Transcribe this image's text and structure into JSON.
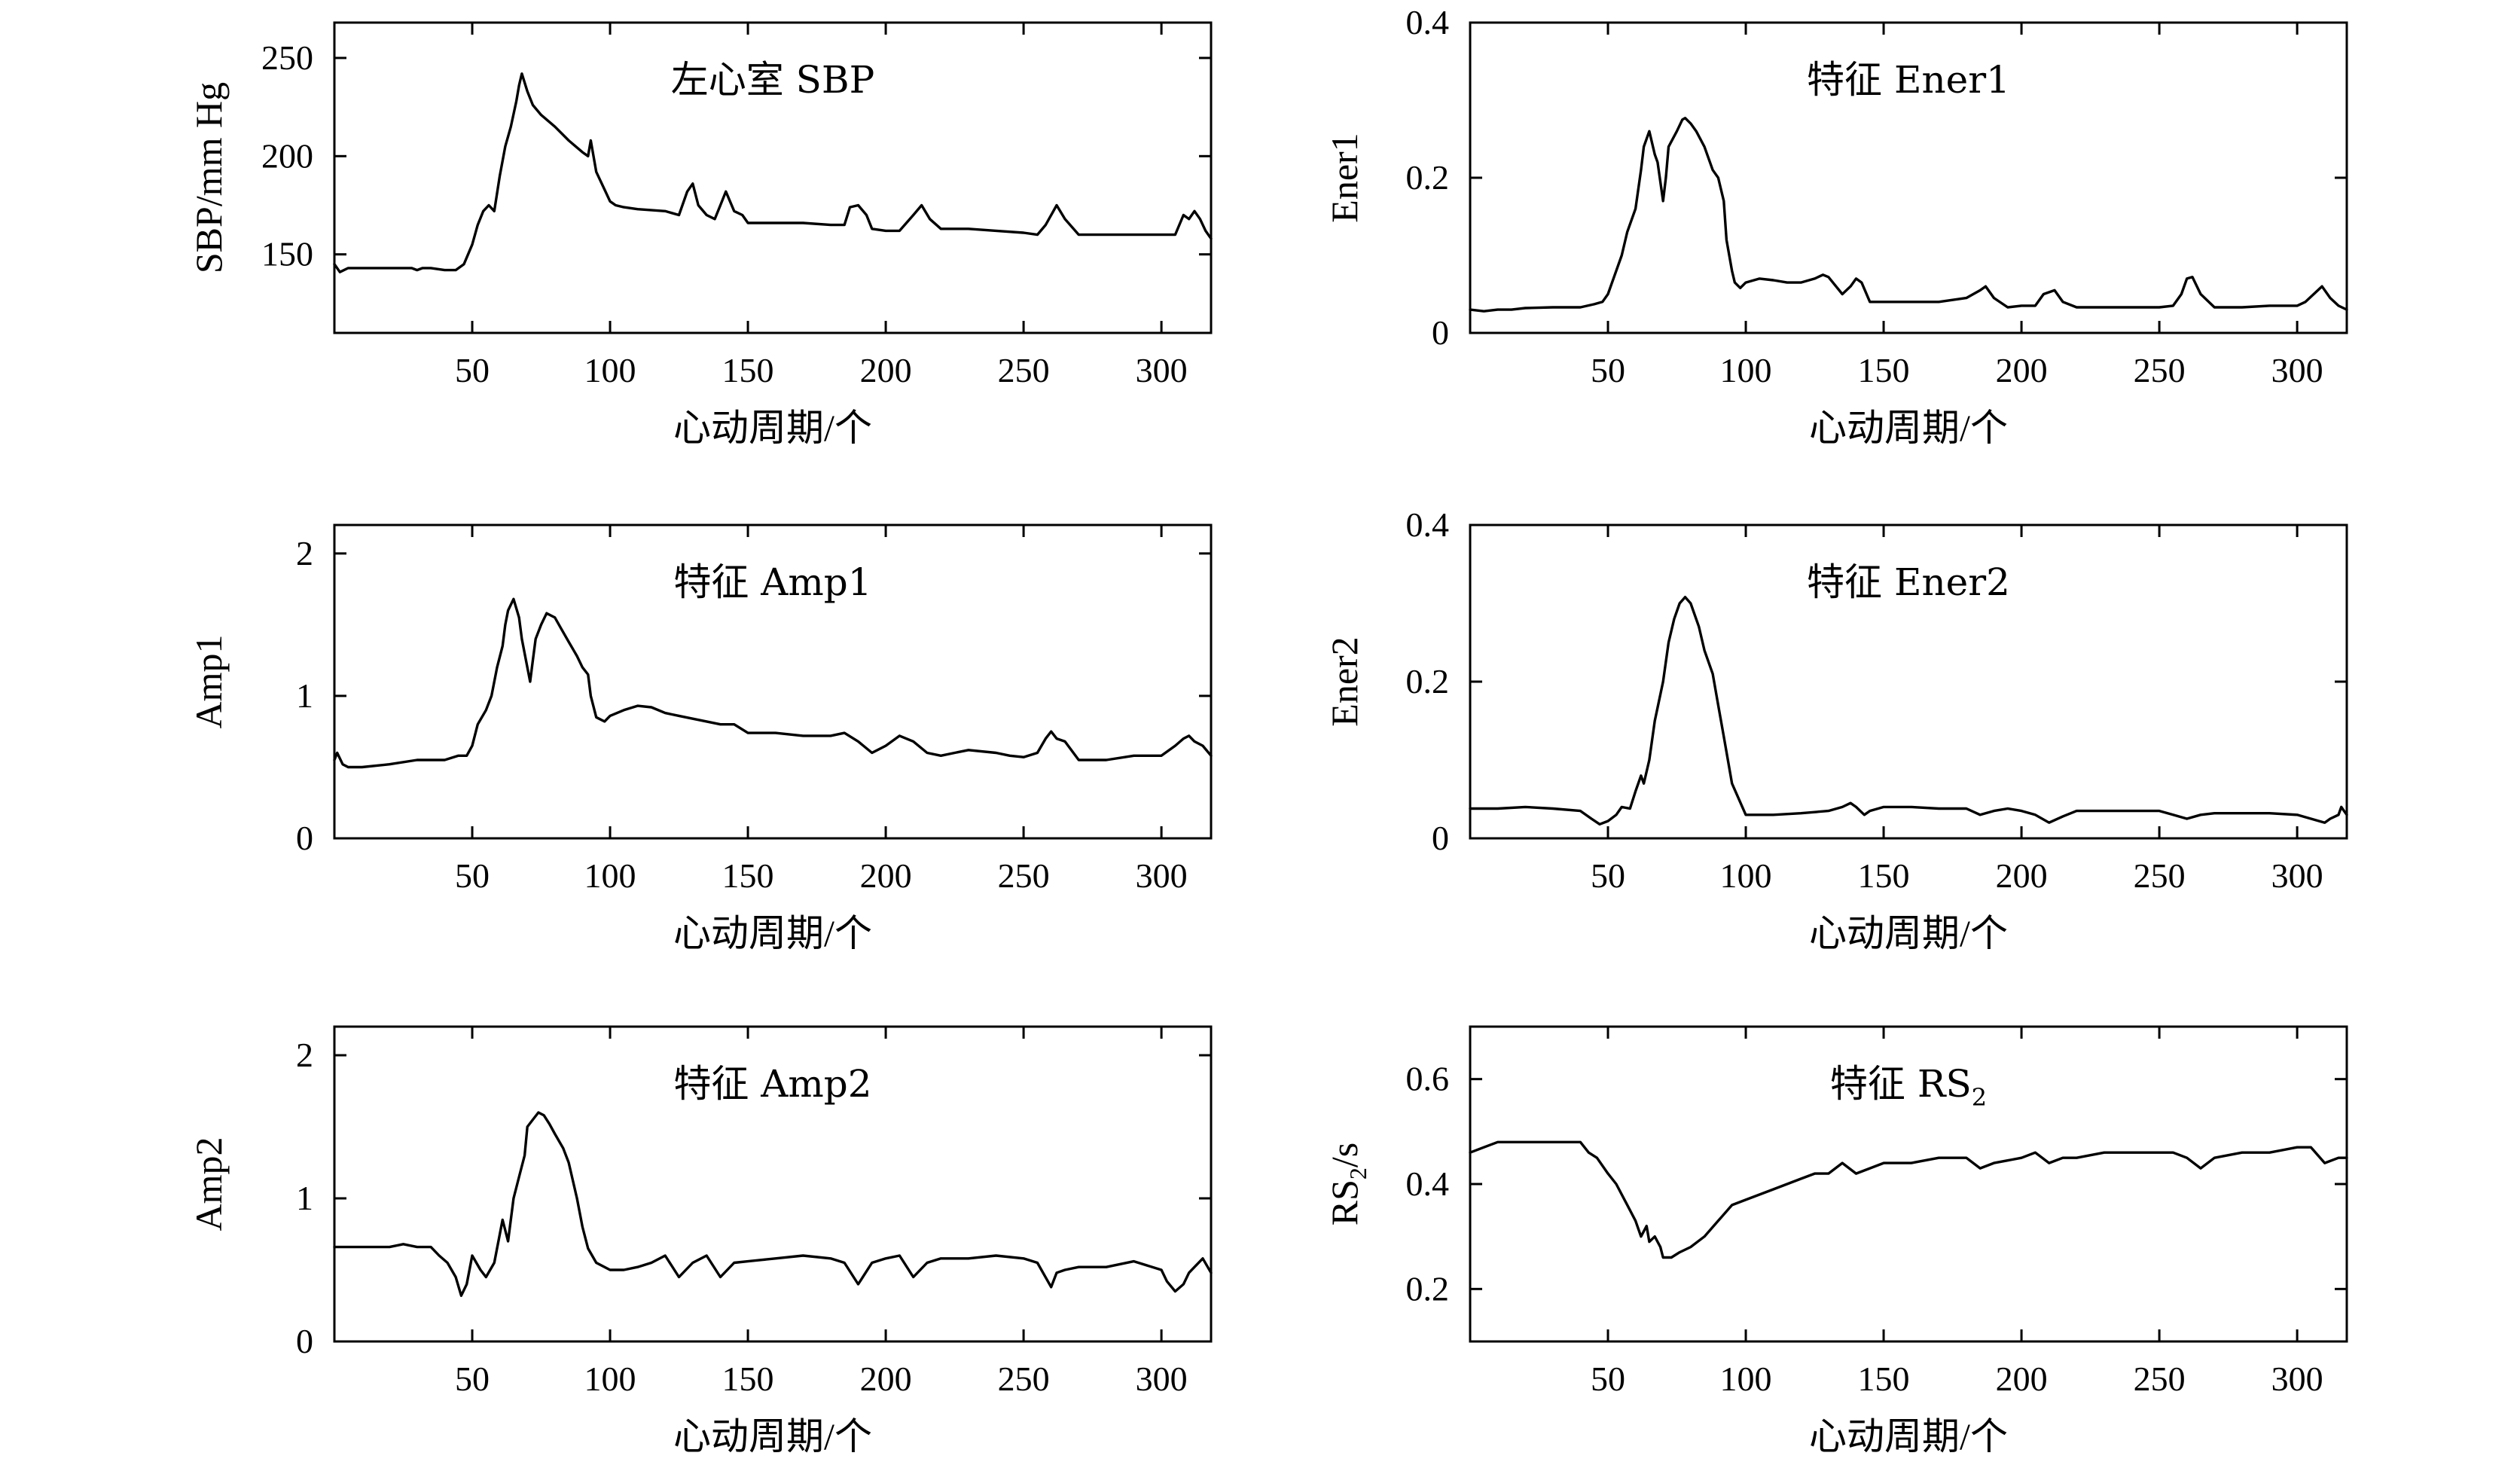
{
  "chart_data": [
    {
      "type": "line",
      "title": "左心室 SBP",
      "xlabel": "心动周期/个",
      "ylabel": "SBP/mm Hg",
      "xlim": [
        0,
        318
      ],
      "ylim": [
        110,
        268
      ],
      "xticks": [
        50,
        100,
        150,
        200,
        250,
        300
      ],
      "yticks": [
        150,
        200,
        250
      ],
      "grid": false,
      "series": [
        {
          "x": [
            0,
            2,
            5,
            10,
            20,
            28,
            30,
            32,
            35,
            40,
            44,
            47,
            50,
            52,
            54,
            56,
            58,
            60,
            62,
            64,
            66,
            67,
            68,
            70,
            72,
            75,
            80,
            85,
            90,
            92,
            93,
            95,
            98,
            100,
            102,
            105,
            110,
            120,
            125,
            128,
            130,
            132,
            135,
            138,
            140,
            142,
            145,
            148,
            150,
            155,
            160,
            170,
            180,
            185,
            187,
            190,
            193,
            195,
            200,
            205,
            210,
            213,
            216,
            220,
            230,
            240,
            250,
            255,
            258,
            262,
            265,
            270,
            280,
            290,
            300,
            305,
            308,
            310,
            312,
            314,
            316,
            318
          ],
          "y": [
            145,
            141,
            143,
            143,
            143,
            143,
            142,
            143,
            143,
            142,
            142,
            145,
            155,
            165,
            172,
            175,
            172,
            190,
            205,
            215,
            228,
            236,
            242,
            233,
            226,
            221,
            215,
            208,
            202,
            200,
            208,
            192,
            183,
            177,
            175,
            174,
            173,
            172,
            170,
            182,
            186,
            175,
            170,
            168,
            175,
            182,
            172,
            170,
            166,
            166,
            166,
            166,
            165,
            165,
            174,
            175,
            170,
            163,
            162,
            162,
            170,
            175,
            168,
            163,
            163,
            162,
            161,
            160,
            165,
            175,
            168,
            160,
            160,
            160,
            160,
            160,
            170,
            168,
            172,
            168,
            162,
            158
          ]
        }
      ]
    },
    {
      "type": "line",
      "title": "特征 Ener1",
      "xlabel": "心动周期/个",
      "ylabel": "Ener1",
      "xlim": [
        0,
        318
      ],
      "ylim": [
        0,
        0.4
      ],
      "xticks": [
        50,
        100,
        150,
        200,
        250,
        300
      ],
      "yticks": [
        "0",
        "0.2",
        "0.4"
      ],
      "grid": false,
      "series": [
        {
          "x": [
            0,
            5,
            10,
            15,
            20,
            30,
            40,
            45,
            48,
            50,
            52,
            55,
            57,
            60,
            62,
            63,
            65,
            67,
            68,
            70,
            71,
            72,
            75,
            77,
            78,
            80,
            82,
            85,
            88,
            90,
            92,
            93,
            95,
            96,
            98,
            100,
            105,
            110,
            115,
            120,
            125,
            128,
            130,
            135,
            138,
            140,
            142,
            145,
            150,
            160,
            170,
            180,
            185,
            187,
            190,
            195,
            200,
            205,
            208,
            212,
            215,
            220,
            230,
            240,
            250,
            255,
            258,
            260,
            262,
            265,
            270,
            280,
            290,
            300,
            303,
            306,
            309,
            312,
            315,
            318
          ],
          "y": [
            0.03,
            0.028,
            0.03,
            0.03,
            0.032,
            0.033,
            0.033,
            0.037,
            0.04,
            0.05,
            0.07,
            0.1,
            0.13,
            0.16,
            0.21,
            0.24,
            0.26,
            0.23,
            0.22,
            0.17,
            0.2,
            0.24,
            0.26,
            0.275,
            0.277,
            0.27,
            0.26,
            0.24,
            0.21,
            0.2,
            0.17,
            0.12,
            0.08,
            0.065,
            0.058,
            0.065,
            0.07,
            0.068,
            0.065,
            0.065,
            0.07,
            0.075,
            0.072,
            0.05,
            0.06,
            0.07,
            0.065,
            0.04,
            0.04,
            0.04,
            0.04,
            0.045,
            0.055,
            0.06,
            0.045,
            0.033,
            0.035,
            0.035,
            0.05,
            0.055,
            0.04,
            0.033,
            0.033,
            0.033,
            0.033,
            0.035,
            0.05,
            0.07,
            0.072,
            0.05,
            0.033,
            0.033,
            0.035,
            0.035,
            0.04,
            0.05,
            0.06,
            0.045,
            0.035,
            0.03
          ]
        }
      ]
    },
    {
      "type": "line",
      "title": "特征 Amp1",
      "xlabel": "心动周期/个",
      "ylabel": "Amp1",
      "xlim": [
        0,
        318
      ],
      "ylim": [
        0,
        2.2
      ],
      "xticks": [
        50,
        100,
        150,
        200,
        250,
        300
      ],
      "yticks": [
        0,
        1,
        2
      ],
      "grid": false,
      "series": [
        {
          "x": [
            0,
            1,
            3,
            5,
            10,
            20,
            30,
            40,
            45,
            48,
            50,
            52,
            55,
            57,
            59,
            61,
            62,
            63,
            65,
            67,
            68,
            70,
            71,
            72,
            73,
            75,
            77,
            78,
            80,
            82,
            85,
            88,
            90,
            92,
            93,
            95,
            98,
            100,
            105,
            110,
            115,
            120,
            125,
            130,
            135,
            140,
            145,
            150,
            155,
            160,
            170,
            180,
            185,
            190,
            195,
            200,
            205,
            210,
            215,
            220,
            225,
            230,
            240,
            245,
            250,
            255,
            258,
            260,
            262,
            265,
            270,
            280,
            290,
            300,
            305,
            308,
            310,
            312,
            315,
            318
          ],
          "y": [
            0.55,
            0.6,
            0.52,
            0.5,
            0.5,
            0.52,
            0.55,
            0.55,
            0.58,
            0.58,
            0.65,
            0.8,
            0.9,
            1.0,
            1.2,
            1.35,
            1.5,
            1.6,
            1.68,
            1.55,
            1.4,
            1.2,
            1.1,
            1.25,
            1.4,
            1.5,
            1.58,
            1.57,
            1.55,
            1.48,
            1.38,
            1.28,
            1.2,
            1.15,
            1.0,
            0.85,
            0.82,
            0.86,
            0.9,
            0.93,
            0.92,
            0.88,
            0.86,
            0.84,
            0.82,
            0.8,
            0.8,
            0.74,
            0.74,
            0.74,
            0.72,
            0.72,
            0.74,
            0.68,
            0.6,
            0.65,
            0.72,
            0.68,
            0.6,
            0.58,
            0.6,
            0.62,
            0.6,
            0.58,
            0.57,
            0.6,
            0.7,
            0.75,
            0.7,
            0.68,
            0.55,
            0.55,
            0.58,
            0.58,
            0.65,
            0.7,
            0.72,
            0.68,
            0.65,
            0.58
          ]
        }
      ]
    },
    {
      "type": "line",
      "title": "特征 Ener2",
      "xlabel": "心动周期/个",
      "ylabel": "Ener2",
      "xlim": [
        0,
        318
      ],
      "ylim": [
        0,
        0.4
      ],
      "xticks": [
        50,
        100,
        150,
        200,
        250,
        300
      ],
      "yticks": [
        "0",
        "0.2",
        "0.4"
      ],
      "grid": false,
      "series": [
        {
          "x": [
            0,
            10,
            20,
            30,
            40,
            44,
            47,
            50,
            53,
            55,
            58,
            60,
            62,
            63,
            65,
            67,
            70,
            72,
            74,
            76,
            78,
            80,
            83,
            85,
            88,
            90,
            92,
            95,
            100,
            110,
            120,
            130,
            135,
            138,
            140,
            143,
            145,
            150,
            160,
            170,
            180,
            185,
            190,
            195,
            200,
            205,
            210,
            215,
            220,
            230,
            240,
            250,
            255,
            260,
            265,
            270,
            280,
            290,
            300,
            305,
            310,
            312,
            315,
            316,
            318
          ],
          "y": [
            0.038,
            0.038,
            0.04,
            0.038,
            0.035,
            0.025,
            0.018,
            0.022,
            0.03,
            0.04,
            0.038,
            0.06,
            0.08,
            0.07,
            0.1,
            0.15,
            0.2,
            0.25,
            0.28,
            0.3,
            0.308,
            0.3,
            0.27,
            0.24,
            0.21,
            0.17,
            0.13,
            0.07,
            0.03,
            0.03,
            0.032,
            0.035,
            0.04,
            0.045,
            0.04,
            0.03,
            0.035,
            0.04,
            0.04,
            0.038,
            0.038,
            0.03,
            0.035,
            0.038,
            0.035,
            0.03,
            0.02,
            0.028,
            0.035,
            0.035,
            0.035,
            0.035,
            0.03,
            0.025,
            0.03,
            0.032,
            0.032,
            0.032,
            0.03,
            0.025,
            0.02,
            0.025,
            0.03,
            0.04,
            0.03
          ]
        }
      ]
    },
    {
      "type": "line",
      "title": "特征 Amp2",
      "xlabel": "心动周期/个",
      "ylabel": "Amp2",
      "xlim": [
        0,
        318
      ],
      "ylim": [
        0,
        2.2
      ],
      "xticks": [
        50,
        100,
        150,
        200,
        250,
        300
      ],
      "yticks": [
        0,
        1,
        2
      ],
      "grid": false,
      "series": [
        {
          "x": [
            0,
            10,
            20,
            25,
            30,
            35,
            38,
            41,
            44,
            46,
            48,
            50,
            53,
            55,
            58,
            61,
            63,
            65,
            67,
            69,
            70,
            72,
            74,
            76,
            78,
            80,
            83,
            85,
            88,
            90,
            92,
            95,
            100,
            105,
            110,
            115,
            120,
            125,
            130,
            135,
            140,
            145,
            150,
            155,
            160,
            170,
            180,
            185,
            190,
            195,
            200,
            205,
            210,
            215,
            220,
            230,
            240,
            250,
            255,
            260,
            262,
            265,
            270,
            280,
            290,
            300,
            302,
            305,
            308,
            310,
            312,
            315,
            318
          ],
          "y": [
            0.66,
            0.66,
            0.66,
            0.68,
            0.66,
            0.66,
            0.6,
            0.55,
            0.45,
            0.32,
            0.4,
            0.6,
            0.5,
            0.45,
            0.55,
            0.85,
            0.7,
            1.0,
            1.15,
            1.3,
            1.5,
            1.55,
            1.6,
            1.58,
            1.52,
            1.45,
            1.35,
            1.25,
            1.0,
            0.8,
            0.65,
            0.55,
            0.5,
            0.5,
            0.52,
            0.55,
            0.6,
            0.45,
            0.55,
            0.6,
            0.45,
            0.55,
            0.56,
            0.57,
            0.58,
            0.6,
            0.58,
            0.55,
            0.4,
            0.55,
            0.58,
            0.6,
            0.45,
            0.55,
            0.58,
            0.58,
            0.6,
            0.58,
            0.55,
            0.38,
            0.48,
            0.5,
            0.52,
            0.52,
            0.56,
            0.5,
            0.42,
            0.35,
            0.4,
            0.48,
            0.52,
            0.58,
            0.48
          ]
        }
      ]
    },
    {
      "type": "line",
      "title": "特征 RS",
      "title_subscript": "2",
      "xlabel": "心动周期/个",
      "ylabel": "RS",
      "ylabel_subscript": "2",
      "ylabel_suffix": "/s",
      "xlim": [
        0,
        318
      ],
      "ylim": [
        0.1,
        0.7
      ],
      "xticks": [
        50,
        100,
        150,
        200,
        250,
        300
      ],
      "yticks": [
        "0.2",
        "0.4",
        "0.6"
      ],
      "grid": false,
      "series": [
        {
          "x": [
            0,
            5,
            10,
            20,
            30,
            40,
            43,
            46,
            50,
            53,
            56,
            58,
            60,
            62,
            64,
            65,
            67,
            69,
            70,
            71,
            73,
            76,
            80,
            85,
            90,
            95,
            100,
            110,
            120,
            125,
            130,
            135,
            140,
            145,
            150,
            160,
            170,
            180,
            185,
            190,
            200,
            205,
            210,
            215,
            220,
            230,
            240,
            250,
            255,
            260,
            265,
            270,
            280,
            290,
            300,
            305,
            310,
            315,
            318
          ],
          "y": [
            0.46,
            0.47,
            0.48,
            0.48,
            0.48,
            0.48,
            0.46,
            0.45,
            0.42,
            0.4,
            0.37,
            0.35,
            0.33,
            0.3,
            0.32,
            0.29,
            0.3,
            0.28,
            0.26,
            0.26,
            0.26,
            0.27,
            0.28,
            0.3,
            0.33,
            0.36,
            0.37,
            0.39,
            0.41,
            0.42,
            0.42,
            0.44,
            0.42,
            0.43,
            0.44,
            0.44,
            0.45,
            0.45,
            0.43,
            0.44,
            0.45,
            0.46,
            0.44,
            0.45,
            0.45,
            0.46,
            0.46,
            0.46,
            0.46,
            0.45,
            0.43,
            0.45,
            0.46,
            0.46,
            0.47,
            0.47,
            0.44,
            0.45,
            0.45
          ]
        }
      ]
    }
  ]
}
